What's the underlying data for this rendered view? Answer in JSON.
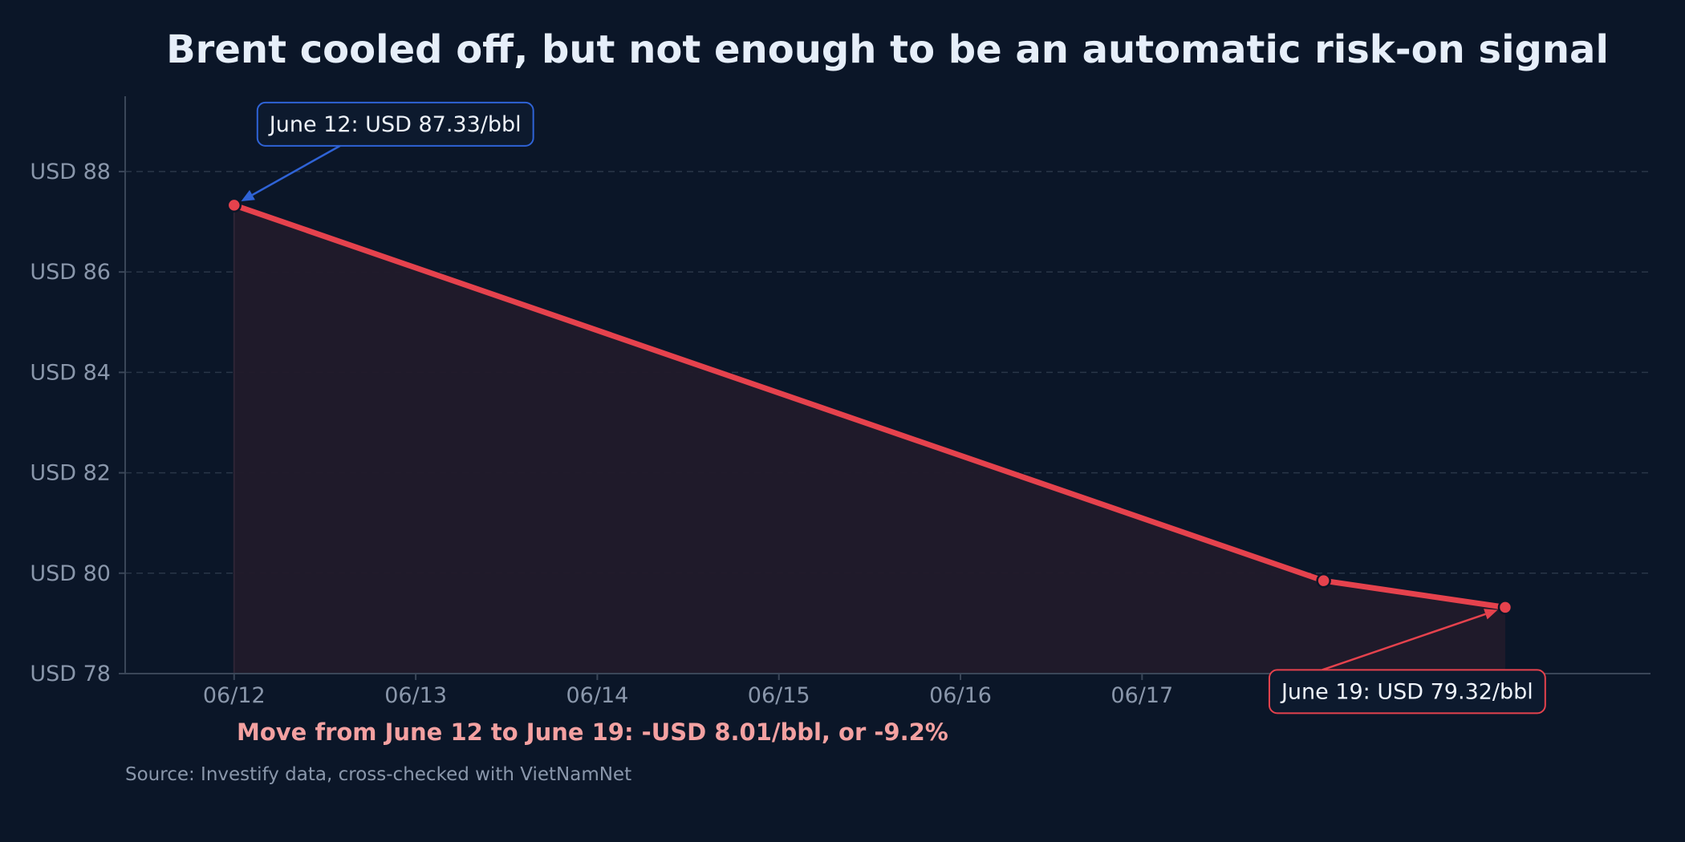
{
  "chart_data": {
    "type": "line",
    "title": "Brent cooled off, but not enough to be an automatic risk-on signal",
    "x_tick_labels": [
      "06/12",
      "06/13",
      "06/14",
      "06/15",
      "06/16",
      "06/17"
    ],
    "y_ticks": [
      78,
      80,
      82,
      84,
      86,
      88
    ],
    "y_tick_prefix": "USD ",
    "xlim": [
      "06/11 09:36",
      "06/19 19:12"
    ],
    "ylim": [
      78,
      89.5
    ],
    "grid": "horizontal dashed",
    "series": [
      {
        "x": [
          "06/12",
          "06/18",
          "06/19"
        ],
        "y": [
          87.33,
          79.85,
          79.32
        ],
        "color": "#e5424d",
        "area_fill": true
      }
    ],
    "annotations": [
      {
        "text": "June 12: USD 87.33/bbl",
        "point_index": 0,
        "border_color": "#2f63d6",
        "arrow_color": "#2f63d6"
      },
      {
        "text": "June 19: USD 79.32/bbl",
        "point_index": 2,
        "border_color": "#e5424d",
        "arrow_color": "#e5424d"
      }
    ],
    "summary": "Move from June 12 to June 19: -USD 8.01/bbl, or -9.2%",
    "source": "Source: Investify data, cross-checked with VietNamNet"
  },
  "colors": {
    "background": "#0b1628",
    "line": "#e5424d",
    "area": "#211a2a",
    "callout_fill": "#0d1a2e"
  }
}
